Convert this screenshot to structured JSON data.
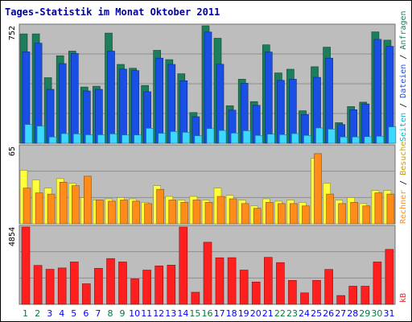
{
  "title": "Tages-Statistik im Monat Oktober 2011",
  "colors": {
    "panel_bg": "#bdbdbd",
    "frame": "#707070",
    "grid": "#8f8f8f",
    "weekday": "#0000ff",
    "weekend": "#007a3d",
    "anfragen": "#1e7d5a",
    "dateien": "#1a4fe6",
    "seiten": "#3cd8ff",
    "besuche": "#ffff3c",
    "rechner": "#ff8c1a",
    "kb": "#ff1f1f"
  },
  "chart_data": [
    {
      "type": "bar",
      "panel": "top",
      "categories": [
        "1",
        "2",
        "3",
        "4",
        "5",
        "6",
        "7",
        "8",
        "9",
        "10",
        "11",
        "12",
        "13",
        "14",
        "15",
        "16",
        "17",
        "18",
        "19",
        "20",
        "21",
        "22",
        "23",
        "24",
        "25",
        "26",
        "27",
        "28",
        "29",
        "30",
        "31"
      ],
      "weekend_days": [
        "1",
        "2",
        "8",
        "9",
        "15",
        "16",
        "22",
        "23",
        "29",
        "30"
      ],
      "ymax_label": "752",
      "ylim": [
        0,
        752
      ],
      "series": [
        {
          "name": "Anfragen",
          "color_key": "anfragen",
          "values": [
            700,
            700,
            420,
            560,
            590,
            360,
            365,
            705,
            505,
            480,
            370,
            595,
            535,
            445,
            197,
            752,
            672,
            240,
            410,
            267,
            630,
            450,
            474,
            208,
            490,
            615,
            132,
            235,
            263,
            713,
            660
          ]
        },
        {
          "name": "Dateien",
          "color_key": "dateien",
          "values": [
            585,
            640,
            345,
            510,
            575,
            335,
            345,
            590,
            475,
            465,
            330,
            545,
            505,
            400,
            170,
            712,
            506,
            212,
            384,
            243,
            584,
            403,
            410,
            184,
            422,
            545,
            120,
            215,
            252,
            665,
            620
          ]
        },
        {
          "name": "Seiten",
          "color_key": "seiten",
          "values": [
            120,
            110,
            40,
            62,
            60,
            54,
            54,
            60,
            53,
            53,
            96,
            64,
            75,
            70,
            48,
            94,
            82,
            65,
            80,
            50,
            58,
            55,
            62,
            50,
            98,
            90,
            40,
            40,
            42,
            45,
            105
          ]
        }
      ]
    },
    {
      "type": "bar",
      "panel": "middle",
      "ymax_label": "65",
      "ylim": [
        0,
        65
      ],
      "series": [
        {
          "name": "Besuche",
          "color_key": "besuche",
          "values": [
            45,
            37,
            30,
            38,
            34,
            22,
            20,
            21,
            22,
            21,
            18,
            32,
            23,
            20,
            23,
            20,
            30,
            24,
            20,
            15,
            21,
            19,
            20,
            18,
            55,
            34,
            20,
            22,
            17,
            28,
            28
          ]
        },
        {
          "name": "Rechner",
          "color_key": "rechner",
          "values": [
            30,
            26,
            25,
            35,
            32,
            40,
            20,
            19,
            20,
            19,
            17,
            29,
            20,
            18,
            20,
            18,
            23,
            21,
            17,
            13,
            18,
            17,
            17,
            15,
            59,
            25,
            17,
            18,
            15,
            26,
            25
          ]
        }
      ]
    },
    {
      "type": "bar",
      "panel": "bottom",
      "ymax_label": "4854",
      "ylim": [
        0,
        4854
      ],
      "series": [
        {
          "name": "kB",
          "color_key": "kb",
          "values": [
            4854,
            2440,
            2200,
            2280,
            2660,
            1290,
            2260,
            2870,
            2660,
            1600,
            2150,
            2410,
            2460,
            4854,
            760,
            3900,
            2920,
            2930,
            2150,
            1400,
            2950,
            2620,
            1500,
            720,
            1500,
            2190,
            550,
            1140,
            1140,
            2660,
            3450
          ]
        }
      ]
    }
  ],
  "right_legend": {
    "top": [
      "Anfragen",
      "Dateien",
      "Seiten",
      "Besuche"
    ],
    "middle": [
      "Rechner",
      "Besuche"
    ],
    "bottom": [
      "kB"
    ],
    "separator": "/"
  }
}
